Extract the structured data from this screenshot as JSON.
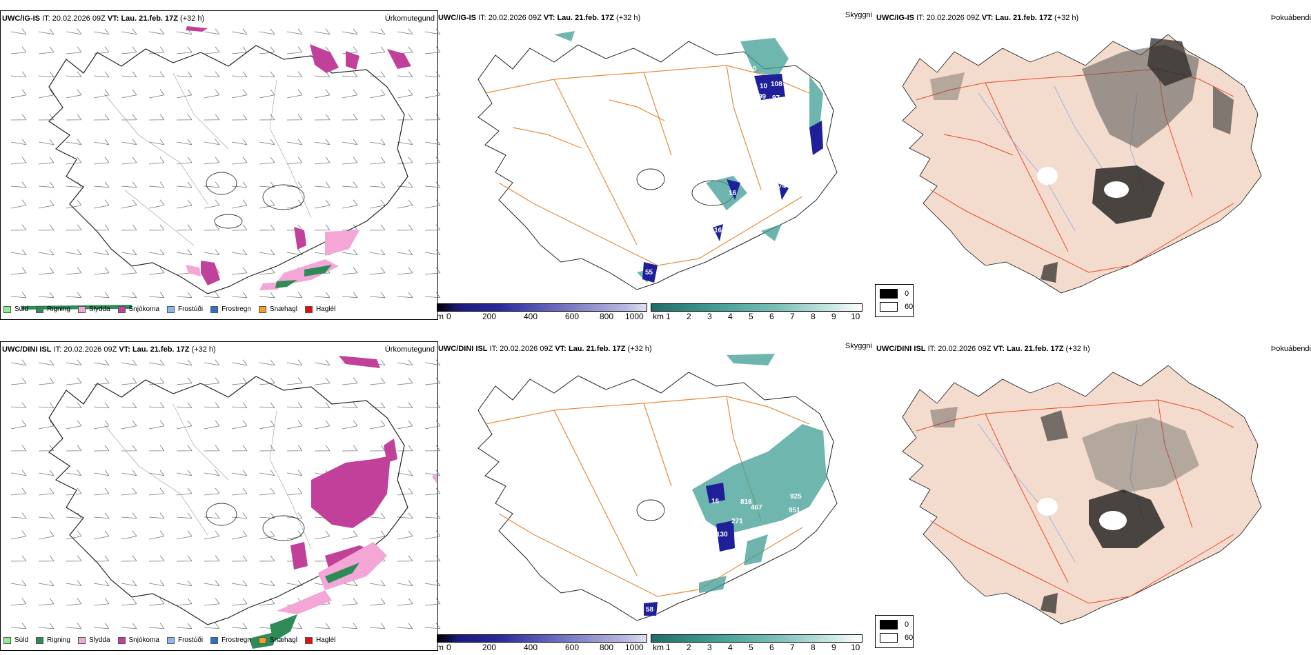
{
  "rows": [
    {
      "model": "UWC/IG-IS",
      "it_label": "IT:",
      "it_value": "20.02.2026 09Z",
      "vt_label": "VT:",
      "vt_value": "Lau. 21.feb. 17Z",
      "lead": "(+32 h)",
      "visibility_values": [
        "20",
        "10",
        "108",
        "99",
        "97",
        "74",
        "16",
        "11",
        "16",
        "55"
      ]
    },
    {
      "model": "UWC/DINI ISL",
      "it_label": "IT:",
      "it_value": "20.02.2026 09Z",
      "vt_label": "VT:",
      "vt_value": "Lau. 21.feb. 17Z",
      "lead": "(+32 h)",
      "visibility_values": [
        "816",
        "467",
        "925",
        "951",
        "271",
        "130",
        "8",
        "16",
        "58"
      ]
    }
  ],
  "panel_titles": {
    "precip_type": "Úrkomutegund",
    "visibility": "Skyggni",
    "fog": "Þokuábendi"
  },
  "precip_legend": [
    {
      "label": "Súld",
      "color": "#90ee90"
    },
    {
      "label": "Rigning",
      "color": "#2e8b57"
    },
    {
      "label": "Slydda",
      "color": "#f4a6d7"
    },
    {
      "label": "Snjókoma",
      "color": "#c0409a"
    },
    {
      "label": "Frostúði",
      "color": "#8ab8f0"
    },
    {
      "label": "Frostregn",
      "color": "#2f6fd0"
    },
    {
      "label": "Snæhagl",
      "color": "#f0a020"
    },
    {
      "label": "Haglél",
      "color": "#e01010"
    }
  ],
  "visibility_scale_m": {
    "unit": "m",
    "ticks": [
      "0",
      "200",
      "400",
      "600",
      "800",
      "1000"
    ]
  },
  "visibility_scale_km": {
    "unit": "km",
    "ticks": [
      "1",
      "2",
      "3",
      "4",
      "5",
      "6",
      "7",
      "8",
      "9",
      "10"
    ]
  },
  "fog_legend": [
    {
      "label": "0",
      "color": "#000000"
    },
    {
      "label": "60",
      "color": "#ffffff"
    }
  ],
  "colors": {
    "snow": "#c0409a",
    "sleet": "#f4a6d7",
    "rain": "#2e8b57",
    "fog_ramp_dark": "#000000",
    "roads": "#e88a3a",
    "land_fog": "#f3dccd",
    "vis_teal": "#3f9d93",
    "vis_blue": "#1f1f9a"
  }
}
